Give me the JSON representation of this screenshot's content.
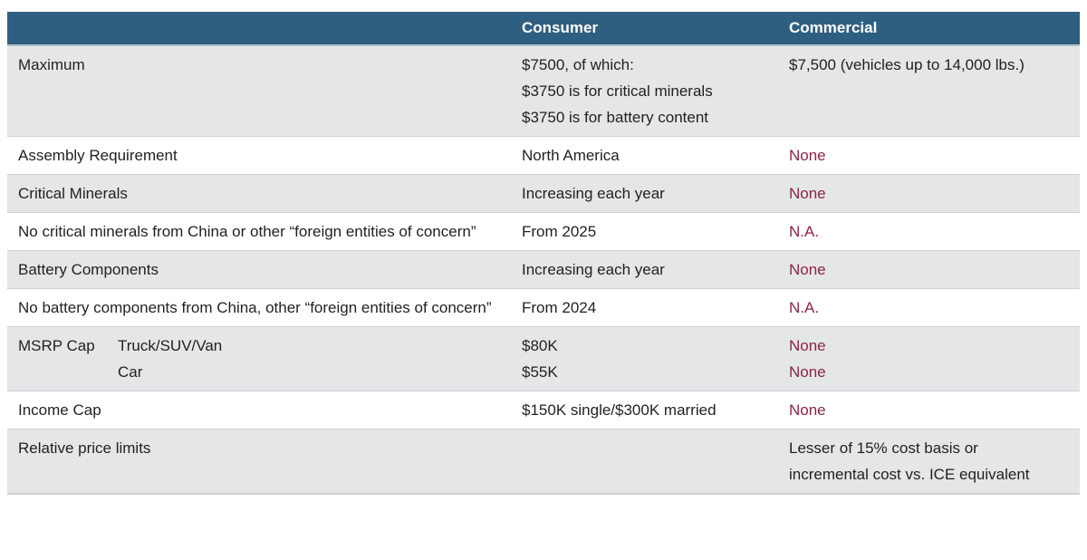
{
  "colors": {
    "header_bg": "#2f5f80",
    "header_text": "#ffffff",
    "header_border": "#b3c3ce",
    "shade_bg": "#e4e6e8",
    "row_bg": "#ffffff",
    "row_border": "#cdd1d3",
    "text": "#231f20",
    "accent_red": "#8e2440"
  },
  "table": {
    "header": {
      "criteria": "",
      "consumer": "Consumer",
      "commercial": "Commercial"
    },
    "rows": [
      {
        "label": "Maximum",
        "consumer": [
          "$7500, of which:",
          "$3750 is for critical minerals",
          "$3750 is for battery content"
        ],
        "commercial": [
          "$7,500 (vehicles up to 14,000 lbs.)"
        ],
        "commercial_red": false,
        "shade": true
      },
      {
        "label": "Assembly Requirement",
        "consumer": [
          "North America"
        ],
        "commercial": [
          "None"
        ],
        "commercial_red": true,
        "shade": false
      },
      {
        "label": "Critical Minerals",
        "consumer": [
          "Increasing each year"
        ],
        "commercial": [
          "None"
        ],
        "commercial_red": true,
        "shade": true
      },
      {
        "label": "No critical minerals from China or other “foreign entities of concern”",
        "consumer": [
          "From 2025"
        ],
        "commercial": [
          "N.A."
        ],
        "commercial_red": true,
        "shade": false
      },
      {
        "label": "Battery Components",
        "consumer": [
          "Increasing each year"
        ],
        "commercial": [
          "None"
        ],
        "commercial_red": true,
        "shade": true
      },
      {
        "label": "No battery components from China, other “foreign entities of concern”",
        "consumer": [
          "From 2024"
        ],
        "commercial": [
          "N.A."
        ],
        "commercial_red": true,
        "shade": false
      },
      {
        "label": "MSRP Cap",
        "sublabels": [
          "Truck/SUV/Van",
          "Car"
        ],
        "consumer": [
          "$80K",
          "$55K"
        ],
        "commercial": [
          "None",
          "None"
        ],
        "commercial_red": true,
        "shade": true
      },
      {
        "label": "Income Cap",
        "consumer": [
          "$150K single/$300K married"
        ],
        "commercial": [
          "None"
        ],
        "commercial_red": true,
        "shade": false
      },
      {
        "label": "Relative price limits",
        "consumer": [],
        "commercial": [
          "Lesser of 15% cost basis or",
          "incremental cost vs. ICE equivalent"
        ],
        "commercial_red": false,
        "shade": true
      }
    ]
  }
}
